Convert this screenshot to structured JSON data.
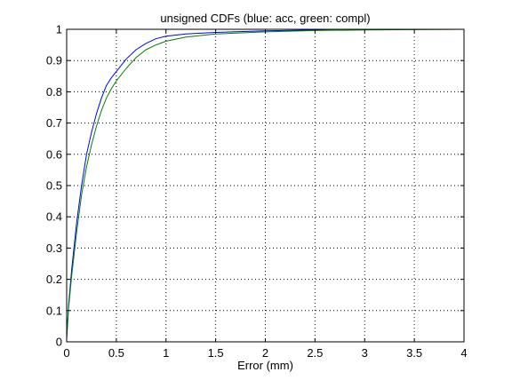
{
  "chart_data": {
    "type": "line",
    "title": "unsigned CDFs (blue: acc, green: compl)",
    "xlabel": "Error (mm)",
    "ylabel": "",
    "xlim": [
      0,
      4
    ],
    "ylim": [
      0,
      1
    ],
    "grid": true,
    "x_ticks": [
      "0",
      "0.5",
      "1",
      "1.5",
      "2",
      "2.5",
      "3",
      "3.5",
      "4"
    ],
    "y_ticks": [
      "0",
      "0.1",
      "0.2",
      "0.3",
      "0.4",
      "0.5",
      "0.6",
      "0.7",
      "0.8",
      "0.9",
      "1"
    ],
    "series": [
      {
        "color": "#0000ff",
        "x": [
          0,
          0.02,
          0.05,
          0.1,
          0.15,
          0.2,
          0.25,
          0.3,
          0.35,
          0.4,
          0.45,
          0.5,
          0.6,
          0.7,
          0.8,
          0.9,
          1.0,
          1.2,
          1.5,
          2.0,
          2.5,
          2.72
        ],
        "y": [
          0.01,
          0.12,
          0.23,
          0.38,
          0.5,
          0.6,
          0.67,
          0.73,
          0.78,
          0.82,
          0.845,
          0.865,
          0.905,
          0.935,
          0.955,
          0.97,
          0.978,
          0.985,
          0.99,
          0.995,
          0.998,
          1.0
        ]
      },
      {
        "color": "#008000",
        "x": [
          0,
          0.02,
          0.05,
          0.1,
          0.15,
          0.2,
          0.25,
          0.3,
          0.35,
          0.4,
          0.45,
          0.5,
          0.6,
          0.7,
          0.8,
          0.9,
          1.0,
          1.2,
          1.5,
          2.0,
          2.5,
          3.0,
          3.5,
          4.0
        ],
        "y": [
          0.01,
          0.11,
          0.21,
          0.35,
          0.47,
          0.56,
          0.63,
          0.69,
          0.74,
          0.78,
          0.81,
          0.835,
          0.875,
          0.91,
          0.935,
          0.95,
          0.962,
          0.975,
          0.985,
          0.992,
          0.996,
          0.998,
          0.999,
          1.0
        ]
      }
    ]
  }
}
